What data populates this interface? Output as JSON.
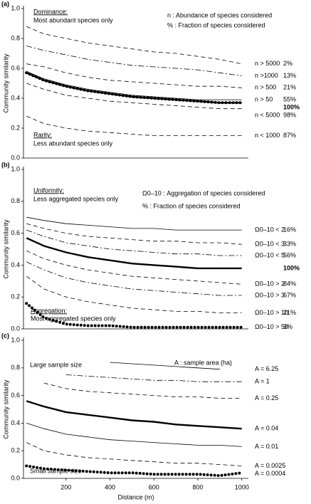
{
  "chart_data": [
    {
      "type": "line",
      "label": "(a)",
      "y_label": "Community similarity",
      "color": "#000000",
      "xlim": [
        0,
        1030
      ],
      "ylim": [
        0,
        1
      ],
      "yticks": [
        {
          "value": 0,
          "label": "0.0"
        },
        0.2,
        0.4,
        0.6,
        0.8,
        {
          "value": 1,
          "label": "1.0"
        }
      ],
      "x": [
        20,
        100,
        200,
        300,
        400,
        500,
        600,
        700,
        800,
        900,
        1000
      ],
      "top_note": {
        "heading": "Dominance:",
        "text": "Most abundant species only"
      },
      "bottom_note": {
        "heading": "Rarity:",
        "text": "Less abundant species only"
      },
      "key": [
        "n : Abundance of species considered",
        "% : Fraction of species considered"
      ],
      "series": [
        {
          "name": "n > 5000",
          "pct": "2%",
          "style": "dash",
          "values": [
            0.88,
            0.83,
            0.8,
            0.77,
            0.75,
            0.73,
            0.71,
            0.7,
            0.68,
            0.66,
            0.63
          ]
        },
        {
          "name": "n >1000",
          "pct": "13%",
          "style": "dashdot",
          "values": [
            0.75,
            0.72,
            0.69,
            0.66,
            0.64,
            0.62,
            0.61,
            0.6,
            0.59,
            0.57,
            0.55
          ]
        },
        {
          "name": "n > 500",
          "pct": "21%",
          "style": "dash",
          "values": [
            0.63,
            0.61,
            0.57,
            0.54,
            0.52,
            0.51,
            0.5,
            0.49,
            0.48,
            0.48,
            0.47
          ]
        },
        {
          "name": "n > 50",
          "pct": "55%",
          "style": "solid",
          "values": [
            0.58,
            0.53,
            0.49,
            0.46,
            0.44,
            0.42,
            0.41,
            0.4,
            0.39,
            0.39,
            0.39
          ]
        },
        {
          "pct": "100%",
          "style": "thickdots",
          "values": [
            0.57,
            0.52,
            0.48,
            0.45,
            0.43,
            0.41,
            0.4,
            0.39,
            0.38,
            0.37,
            0.37
          ]
        },
        {
          "name": "n < 5000",
          "pct": "98%",
          "style": "dash",
          "values": [
            0.5,
            0.46,
            0.42,
            0.4,
            0.38,
            0.37,
            0.36,
            0.35,
            0.34,
            0.33,
            0.33
          ]
        },
        {
          "name": "n < 1000",
          "pct": "87%",
          "style": "dash",
          "values": [
            0.28,
            0.23,
            0.2,
            0.18,
            0.17,
            0.16,
            0.15,
            0.15,
            0.15,
            0.15,
            0.15
          ]
        }
      ]
    },
    {
      "type": "line",
      "label": "(b)",
      "y_label": "Community similarity",
      "color": "#000000",
      "xlim": [
        0,
        1030
      ],
      "ylim": [
        0,
        1
      ],
      "yticks": [
        {
          "value": 0,
          "label": "0.0"
        },
        0.2,
        0.4,
        0.6,
        0.8,
        {
          "value": 1,
          "label": "1.0"
        }
      ],
      "x": [
        20,
        100,
        200,
        300,
        400,
        500,
        600,
        700,
        800,
        900,
        1000
      ],
      "top_note": {
        "heading": "Uniformity:",
        "text": "Less aggregated species only"
      },
      "bottom_note": {
        "heading": "Aggregation:",
        "text": "Most aggregated species only"
      },
      "key": [
        "Ω0–10 : Aggregation of species considered",
        "% : Fraction of species considered"
      ],
      "series": [
        {
          "name": "Ω0–10 < 2",
          "pct": "16%",
          "style": "solid",
          "values": [
            0.7,
            0.68,
            0.66,
            0.65,
            0.64,
            0.63,
            0.63,
            0.62,
            0.62,
            0.62,
            0.62
          ]
        },
        {
          "name": "Ω0–10 < 3",
          "pct": "33%",
          "style": "dash",
          "values": [
            0.66,
            0.63,
            0.6,
            0.58,
            0.57,
            0.56,
            0.55,
            0.55,
            0.54,
            0.54,
            0.53
          ]
        },
        {
          "name": "Ω0–10 < 5",
          "pct": "56%",
          "style": "dashdot",
          "values": [
            0.62,
            0.58,
            0.54,
            0.52,
            0.5,
            0.49,
            0.48,
            0.47,
            0.47,
            0.46,
            0.46
          ]
        },
        {
          "pct": "100%",
          "style": "thick",
          "values": [
            0.57,
            0.52,
            0.48,
            0.45,
            0.43,
            0.41,
            0.4,
            0.39,
            0.38,
            0.38,
            0.38
          ]
        },
        {
          "name": "Ω0–10 > 2",
          "pct": "84%",
          "style": "dash",
          "values": [
            0.49,
            0.44,
            0.4,
            0.37,
            0.35,
            0.33,
            0.32,
            0.31,
            0.3,
            0.29,
            0.28
          ]
        },
        {
          "name": "Ω0–10 > 3",
          "pct": "67%",
          "style": "dashdot",
          "values": [
            0.42,
            0.37,
            0.32,
            0.29,
            0.27,
            0.25,
            0.24,
            0.23,
            0.22,
            0.21,
            0.21
          ]
        },
        {
          "name": "Ω0–10 > 10",
          "pct": "21%",
          "style": "dash",
          "values": [
            0.33,
            0.25,
            0.2,
            0.17,
            0.15,
            0.13,
            0.12,
            0.11,
            0.11,
            0.1,
            0.1
          ]
        },
        {
          "name": "Ω0–10 > 50",
          "pct": "3%",
          "style": "dots",
          "values": [
            0.16,
            0.07,
            0.03,
            0.02,
            0.02,
            0.01,
            0.01,
            0.01,
            0.01,
            0.01,
            0.01
          ]
        }
      ]
    },
    {
      "type": "line",
      "label": "(c)",
      "y_label": "Community similarity",
      "x_label": "Distance (m)",
      "color": "#000000",
      "xlim": [
        0,
        1030
      ],
      "ylim": [
        0,
        1
      ],
      "yticks": [
        {
          "value": 0,
          "label": "0.0"
        },
        0.2,
        0.4,
        0.6,
        0.8,
        {
          "value": 1,
          "label": "1.0"
        }
      ],
      "xticks": [
        200,
        400,
        600,
        800,
        1000
      ],
      "x": [
        20,
        100,
        200,
        300,
        400,
        500,
        600,
        700,
        800,
        900,
        1000
      ],
      "top_note": {
        "text": "Large sample size"
      },
      "bottom_note": {
        "text": "Small sample size"
      },
      "key": [
        "A : sample area (ha)"
      ],
      "series": [
        {
          "name": "A = 6.25",
          "style": "solid",
          "values": [
            null,
            null,
            null,
            null,
            0.84,
            0.83,
            0.82,
            0.81,
            0.8,
            0.79,
            null
          ]
        },
        {
          "name": "A = 1",
          "style": "dashdot",
          "values": [
            null,
            null,
            0.75,
            0.74,
            0.73,
            0.72,
            0.71,
            0.71,
            0.7,
            0.7,
            0.7
          ]
        },
        {
          "name": "A = 0.25",
          "style": "dash",
          "values": [
            null,
            0.69,
            0.65,
            0.63,
            0.62,
            0.61,
            0.6,
            0.59,
            0.59,
            0.58,
            0.58
          ]
        },
        {
          "name": "A = 0.04",
          "style": "thick",
          "values": [
            0.56,
            0.52,
            0.48,
            0.46,
            0.44,
            0.42,
            0.41,
            0.39,
            0.38,
            0.37,
            0.36
          ]
        },
        {
          "name": "A = 0.01",
          "style": "solid",
          "values": [
            0.4,
            0.36,
            0.32,
            0.3,
            0.28,
            0.27,
            0.26,
            0.25,
            0.24,
            0.24,
            0.23
          ]
        },
        {
          "name": "A = 0.0025",
          "style": "dash",
          "values": [
            0.26,
            0.2,
            0.17,
            0.15,
            0.14,
            0.13,
            0.12,
            0.11,
            0.11,
            0.1,
            0.09
          ]
        },
        {
          "name": "A = 0.0004",
          "style": "dots",
          "values": [
            0.09,
            0.07,
            0.06,
            0.05,
            0.04,
            0.04,
            0.03,
            0.03,
            0.03,
            0.02,
            0.04
          ]
        }
      ]
    }
  ]
}
